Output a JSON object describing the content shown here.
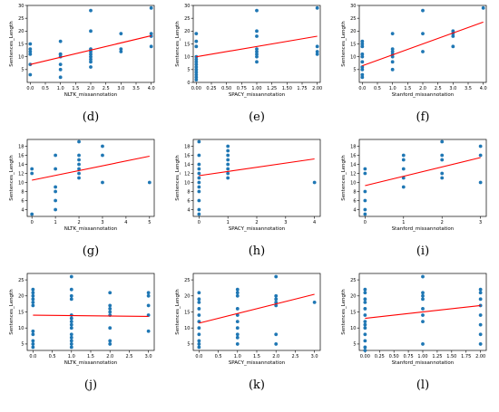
{
  "chart_data": [
    {
      "type": "scatter",
      "panel_label": "(d)",
      "xlabel": "NLTK_missannotation",
      "ylabel": "Sentences_Length",
      "xlim": [
        -0.1,
        4.1
      ],
      "ylim": [
        0,
        30
      ],
      "xticks": [
        "0.0",
        "0.5",
        "1.0",
        "1.5",
        "2.0",
        "2.5",
        "3.0",
        "3.5",
        "4.0"
      ],
      "yticks": [
        "5",
        "10",
        "15",
        "20",
        "25",
        "30"
      ],
      "x": [
        0,
        0,
        0,
        0,
        0,
        0,
        1,
        1,
        1,
        1,
        1,
        1,
        1,
        2,
        2,
        2,
        2,
        2,
        2,
        2,
        2,
        2,
        3,
        3,
        3,
        4,
        4,
        4,
        4
      ],
      "y": [
        3,
        7,
        11,
        12,
        13,
        15,
        2,
        5,
        7,
        10,
        11,
        11,
        16,
        6,
        8,
        9,
        10,
        11,
        12,
        13,
        20,
        28,
        12,
        13,
        19,
        14,
        18,
        19,
        29
      ],
      "trend": {
        "x": [
          0,
          4
        ],
        "y": [
          7,
          18.2
        ]
      }
    },
    {
      "type": "scatter",
      "panel_label": "(e)",
      "xlabel": "SPACY_missannotation",
      "ylabel": "Sentences_Length",
      "xlim": [
        -0.05,
        2.05
      ],
      "ylim": [
        0,
        30
      ],
      "xticks": [
        "0.00",
        "0.25",
        "0.50",
        "0.75",
        "1.00",
        "1.25",
        "1.50",
        "1.75",
        "2.00"
      ],
      "yticks": [
        "0",
        "5",
        "10",
        "15",
        "20",
        "25",
        "30"
      ],
      "x": [
        0,
        0,
        0,
        0,
        0,
        0,
        0,
        0,
        0,
        0,
        0,
        0,
        0,
        1,
        1,
        1,
        1,
        1,
        1,
        1,
        1,
        2,
        2,
        2,
        2
      ],
      "y": [
        1,
        2,
        3,
        4,
        5,
        6,
        7,
        8,
        9,
        10,
        14,
        16,
        19,
        8,
        10,
        11,
        12,
        13,
        18,
        20,
        28,
        11,
        12,
        14,
        29
      ],
      "trend": {
        "x": [
          0,
          2
        ],
        "y": [
          10,
          18
        ]
      }
    },
    {
      "type": "scatter",
      "panel_label": "(f)",
      "xlabel": "Stanford_missannotation",
      "ylabel": "Sentences_Length",
      "xlim": [
        -0.1,
        4.1
      ],
      "ylim": [
        0,
        30
      ],
      "xticks": [
        "0.0",
        "0.5",
        "1.0",
        "1.5",
        "2.0",
        "2.5",
        "3.0",
        "3.5",
        "4.0"
      ],
      "yticks": [
        "5",
        "10",
        "15",
        "20",
        "25",
        "30"
      ],
      "x": [
        0,
        0,
        0,
        0,
        0,
        0,
        0,
        0,
        0,
        0,
        1,
        1,
        1,
        1,
        1,
        1,
        1,
        2,
        2,
        2,
        3,
        3,
        3,
        3,
        4
      ],
      "y": [
        2,
        3,
        5,
        6,
        8,
        10,
        11,
        14,
        15,
        16,
        5,
        8,
        10,
        11,
        12,
        13,
        19,
        12,
        19,
        28,
        14,
        18,
        19,
        20,
        29
      ],
      "trend": {
        "x": [
          0,
          4
        ],
        "y": [
          6.5,
          23.5
        ]
      }
    },
    {
      "type": "scatter",
      "panel_label": "(g)",
      "xlabel": "NLTK_missannotation",
      "ylabel": "Sentences_Length",
      "xlim": [
        -0.2,
        5.2
      ],
      "ylim": [
        2.5,
        19.5
      ],
      "xticks": [
        "0",
        "1",
        "2",
        "3",
        "4",
        "5"
      ],
      "yticks": [
        "4",
        "6",
        "8",
        "10",
        "12",
        "14",
        "16",
        "18"
      ],
      "x": [
        0,
        0,
        0,
        1,
        1,
        1,
        1,
        1,
        1,
        2,
        2,
        2,
        2,
        2,
        2,
        2,
        3,
        3,
        3,
        5
      ],
      "y": [
        3,
        12,
        13,
        4,
        6,
        8,
        9,
        13,
        16,
        11,
        12,
        13,
        14,
        15,
        16,
        19,
        10,
        16,
        18,
        10
      ],
      "trend": {
        "x": [
          0,
          5
        ],
        "y": [
          10.5,
          15.8
        ]
      }
    },
    {
      "type": "scatter",
      "panel_label": "(h)",
      "xlabel": "SPACY_missannotation",
      "ylabel": "Sentences_Length",
      "xlim": [
        -0.2,
        4.2
      ],
      "ylim": [
        2.5,
        19.5
      ],
      "xticks": [
        "0",
        "1",
        "2",
        "3",
        "4"
      ],
      "yticks": [
        "4",
        "6",
        "8",
        "10",
        "12",
        "14",
        "16",
        "18"
      ],
      "x": [
        0,
        0,
        0,
        0,
        0,
        0,
        0,
        0,
        0,
        0,
        0,
        0,
        1,
        1,
        1,
        1,
        1,
        1,
        1,
        1,
        4
      ],
      "y": [
        3,
        4,
        6,
        8,
        9,
        10,
        11,
        12,
        13,
        14,
        16,
        19,
        11,
        12,
        13,
        14,
        15,
        16,
        17,
        18,
        10
      ],
      "trend": {
        "x": [
          0,
          4
        ],
        "y": [
          11.5,
          15.2
        ]
      }
    },
    {
      "type": "scatter",
      "panel_label": "(i)",
      "xlabel": "Stanford_missannotation",
      "ylabel": "Sentences_Length",
      "xlim": [
        -0.15,
        3.15
      ],
      "ylim": [
        2.5,
        19.5
      ],
      "xticks": [
        "0",
        "1",
        "2",
        "3"
      ],
      "yticks": [
        "4",
        "6",
        "8",
        "10",
        "12",
        "14",
        "16",
        "18"
      ],
      "x": [
        0,
        0,
        0,
        0,
        0,
        0,
        1,
        1,
        1,
        1,
        1,
        2,
        2,
        2,
        2,
        2,
        3,
        3,
        3
      ],
      "y": [
        3,
        4,
        6,
        8,
        12,
        13,
        9,
        11,
        13,
        15,
        16,
        11,
        12,
        15,
        16,
        19,
        10,
        16,
        18
      ],
      "trend": {
        "x": [
          0,
          3
        ],
        "y": [
          9.3,
          15.5
        ]
      }
    },
    {
      "type": "scatter",
      "panel_label": "(j)",
      "xlabel": "NLTK_missannotation",
      "ylabel": "Sentences_Length",
      "xlim": [
        -0.15,
        3.15
      ],
      "ylim": [
        3,
        27
      ],
      "xticks": [
        "0.0",
        "0.5",
        "1.0",
        "1.5",
        "2.0",
        "2.5",
        "3.0"
      ],
      "yticks": [
        "5",
        "10",
        "15",
        "20",
        "25"
      ],
      "x": [
        0,
        0,
        0,
        0,
        0,
        0,
        0,
        0,
        0,
        0,
        0,
        1,
        1,
        1,
        1,
        1,
        1,
        1,
        1,
        1,
        1,
        1,
        1,
        1,
        1,
        2,
        2,
        2,
        2,
        2,
        2,
        2,
        2,
        3,
        3,
        3,
        3,
        3
      ],
      "y": [
        4,
        5,
        6,
        8,
        9,
        17,
        18,
        19,
        20,
        21,
        22,
        4,
        5,
        6,
        7,
        8,
        10,
        11,
        12,
        13,
        14,
        19,
        20,
        22,
        26,
        5,
        6,
        10,
        14,
        15,
        16,
        17,
        21,
        9,
        14,
        17,
        20,
        21
      ],
      "trend": {
        "x": [
          0,
          3
        ],
        "y": [
          14,
          13.6
        ]
      }
    },
    {
      "type": "scatter",
      "panel_label": "(k)",
      "xlabel": "SPACY_missannotation",
      "ylabel": "Sentences_Length",
      "xlim": [
        -0.15,
        3.15
      ],
      "ylim": [
        3,
        27
      ],
      "xticks": [
        "0.0",
        "0.5",
        "1.0",
        "1.5",
        "2.0",
        "2.5",
        "3.0"
      ],
      "yticks": [
        "5",
        "10",
        "15",
        "20",
        "25"
      ],
      "x": [
        0,
        0,
        0,
        0,
        0,
        0,
        0,
        0,
        0,
        0,
        0,
        1,
        1,
        1,
        1,
        1,
        1,
        1,
        1,
        1,
        1,
        2,
        2,
        2,
        2,
        2,
        2,
        2,
        3
      ],
      "y": [
        4,
        5,
        6,
        8,
        10,
        12,
        14,
        16,
        18,
        19,
        21,
        5,
        7,
        8,
        10,
        12,
        14,
        16,
        20,
        21,
        22,
        5,
        8,
        17,
        18,
        19,
        20,
        26,
        18
      ],
      "trend": {
        "x": [
          0,
          3
        ],
        "y": [
          11.5,
          20.5
        ]
      }
    },
    {
      "type": "scatter",
      "panel_label": "(l)",
      "xlabel": "Stanford_missannotation",
      "ylabel": "Sentences_Length",
      "xlim": [
        -0.1,
        2.1
      ],
      "ylim": [
        3,
        27
      ],
      "xticks": [
        "0.00",
        "0.25",
        "0.50",
        "0.75",
        "1.00",
        "1.25",
        "1.50",
        "1.75",
        "2.00"
      ],
      "yticks": [
        "5",
        "10",
        "15",
        "20",
        "25"
      ],
      "x": [
        0,
        0,
        0,
        0,
        0,
        0,
        0,
        0,
        0,
        0,
        0,
        0,
        0,
        1,
        1,
        1,
        1,
        1,
        1,
        1,
        1,
        2,
        2,
        2,
        2,
        2,
        2,
        2,
        2
      ],
      "y": [
        3,
        4,
        6,
        8,
        10,
        11,
        12,
        14,
        16,
        18,
        19,
        21,
        22,
        5,
        12,
        14,
        16,
        19,
        20,
        21,
        26,
        5,
        8,
        11,
        14,
        17,
        19,
        21,
        22
      ],
      "trend": {
        "x": [
          0,
          2
        ],
        "y": [
          13,
          17
        ]
      }
    }
  ],
  "colors": {
    "points": "#1f77b4",
    "trend": "#ff0000",
    "axes": "#000000"
  }
}
